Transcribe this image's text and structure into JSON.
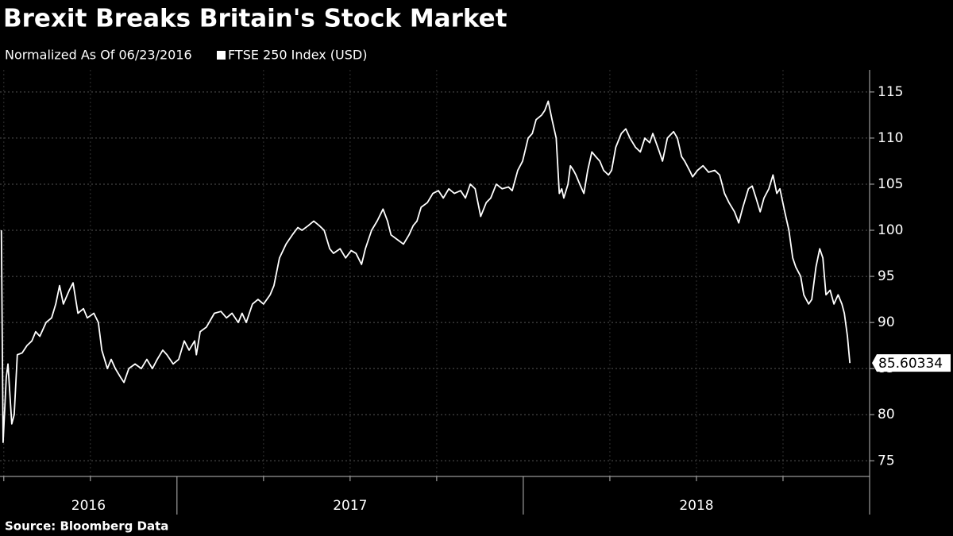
{
  "chart_data": {
    "type": "line",
    "title": "Brexit Breaks Britain's Stock Market",
    "subtitle": "Normalized As Of 06/23/2016",
    "source": "Source:  Bloomberg Data",
    "last_label": "85.60334",
    "grid": true,
    "xlim": [
      2016.489,
      2019.0
    ],
    "xticks": [
      2016,
      2017,
      2018
    ],
    "xminorticks": [
      2016.5,
      2016.75,
      2017.25,
      2017.5,
      2017.75,
      2018.25,
      2018.5,
      2018.75
    ],
    "ylim": [
      73.3,
      117.4
    ],
    "yticks": [
      75,
      80,
      85,
      90,
      95,
      100,
      105,
      110,
      115
    ],
    "x": [
      2016.493,
      2016.498,
      2016.507,
      2016.512,
      2016.523,
      2016.53,
      2016.539,
      2016.553,
      2016.567,
      2016.581,
      2016.592,
      2016.604,
      2016.622,
      2016.638,
      2016.65,
      2016.661,
      2016.672,
      2016.689,
      2016.7,
      2016.714,
      2016.73,
      2016.741,
      2016.76,
      2016.773,
      2016.783,
      2016.799,
      2016.81,
      2016.822,
      2016.838,
      2016.847,
      2016.861,
      2016.879,
      2016.897,
      2016.913,
      2016.929,
      2016.943,
      2016.959,
      2016.971,
      2016.989,
      2017.005,
      2017.021,
      2017.035,
      2017.051,
      2017.056,
      2017.067,
      2017.085,
      2017.108,
      2017.127,
      2017.143,
      2017.159,
      2017.177,
      2017.188,
      2017.2,
      2017.218,
      2017.234,
      2017.25,
      2017.269,
      2017.28,
      2017.296,
      2017.315,
      2017.333,
      2017.349,
      2017.361,
      2017.379,
      2017.395,
      2017.411,
      2017.425,
      2017.441,
      2017.452,
      2017.471,
      2017.487,
      2017.503,
      2017.517,
      2017.533,
      2017.544,
      2017.562,
      2017.578,
      2017.595,
      2017.608,
      2017.618,
      2017.636,
      2017.654,
      2017.67,
      2017.682,
      2017.693,
      2017.705,
      2017.723,
      2017.739,
      2017.755,
      2017.769,
      2017.785,
      2017.801,
      2017.819,
      2017.833,
      2017.847,
      2017.861,
      2017.877,
      2017.893,
      2017.906,
      2017.922,
      2017.939,
      2017.957,
      2017.968,
      2017.984,
      2017.998,
      2018.014,
      2018.026,
      2018.037,
      2018.053,
      2018.062,
      2018.072,
      2018.083,
      2018.095,
      2018.104,
      2018.111,
      2018.117,
      2018.129,
      2018.136,
      2018.145,
      2018.152,
      2018.163,
      2018.175,
      2018.186,
      2018.198,
      2018.209,
      2018.221,
      2018.232,
      2018.246,
      2018.255,
      2018.267,
      2018.283,
      2018.296,
      2018.308,
      2018.324,
      2018.338,
      2018.351,
      2018.365,
      2018.374,
      2018.393,
      2018.402,
      2018.416,
      2018.434,
      2018.445,
      2018.457,
      2018.466,
      2018.48,
      2018.489,
      2018.503,
      2018.519,
      2018.535,
      2018.553,
      2018.567,
      2018.581,
      2018.594,
      2018.61,
      2018.622,
      2018.634,
      2018.65,
      2018.661,
      2018.672,
      2018.684,
      2018.695,
      2018.709,
      2018.721,
      2018.732,
      2018.741,
      2018.755,
      2018.767,
      2018.778,
      2018.787,
      2018.801,
      2018.81,
      2018.824,
      2018.833,
      2018.845,
      2018.856,
      2018.865,
      2018.874,
      2018.886,
      2018.897,
      2018.909,
      2018.92,
      2018.927,
      2018.936,
      2018.943
    ],
    "series": [
      {
        "name": "FTSE 250 Index (USD)",
        "color": "#ffffff",
        "values": [
          100,
          77,
          84,
          85.5,
          79,
          80,
          86.5,
          86.7,
          87.5,
          88,
          89,
          88.5,
          90,
          90.5,
          92,
          94,
          92,
          93.5,
          94.3,
          91,
          91.5,
          90.5,
          91,
          90,
          87,
          85,
          86,
          85,
          84,
          83.5,
          85,
          85.5,
          85,
          86,
          85,
          86,
          87,
          86.5,
          85.5,
          86,
          88,
          87,
          88,
          86.5,
          89,
          89.5,
          91,
          91.2,
          90.5,
          91,
          90,
          91,
          90,
          92,
          92.5,
          92,
          93,
          94,
          97,
          98.5,
          99.5,
          100.3,
          100,
          100.5,
          101,
          100.5,
          100,
          98,
          97.5,
          98,
          97,
          97.8,
          97.5,
          96.3,
          98,
          100,
          101,
          102.3,
          101,
          99.5,
          99,
          98.5,
          99.5,
          100.5,
          101,
          102.5,
          103,
          104,
          104.3,
          103.5,
          104.5,
          104,
          104.3,
          103.5,
          105,
          104.5,
          101.5,
          103,
          103.5,
          105,
          104.5,
          104.7,
          104.3,
          106.5,
          107.5,
          110,
          110.5,
          112,
          112.5,
          113,
          114,
          112,
          110,
          104,
          104.5,
          103.5,
          105,
          107,
          106.5,
          106,
          105,
          104,
          106.5,
          108.5,
          108,
          107.5,
          106.5,
          106,
          106.5,
          109,
          110.5,
          111,
          110,
          109,
          108.5,
          110,
          109.5,
          110.5,
          108.5,
          107.5,
          110,
          110.7,
          110,
          108,
          107.5,
          106.5,
          105.8,
          106.5,
          107,
          106.3,
          106.5,
          106,
          104,
          103,
          102,
          100.8,
          102.5,
          104.5,
          104.8,
          103.5,
          102,
          103.5,
          104.5,
          106,
          104,
          104.5,
          102,
          100,
          97,
          96,
          95,
          93,
          92,
          92.5,
          96,
          98,
          97,
          93,
          93.5,
          92,
          93,
          92,
          91,
          88.5,
          85.60334
        ]
      }
    ]
  }
}
